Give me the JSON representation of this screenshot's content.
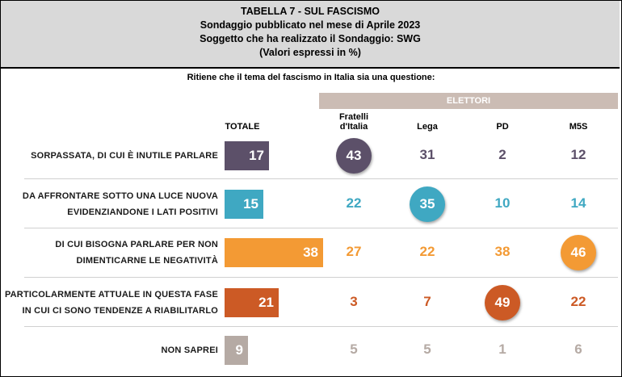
{
  "header": {
    "line1": "TABELLA 7 - SUL FASCISMO",
    "line2": "Sondaggio pubblicato nel mese di Aprile 2023",
    "line3": "Soggetto che ha realizzato il Sondaggio: SWG",
    "line4": "(Valori espressi in %)"
  },
  "question": "Ritiene che il tema del fascismo in Italia sia una questione:",
  "elettori_label": "ELETTORI",
  "columns": {
    "totale": "TOTALE",
    "fdi_line1": "Fratelli",
    "fdi_line2": "d'Italia",
    "lega": "Lega",
    "pd": "PD",
    "m5s": "M5S"
  },
  "chart_data": {
    "type": "table",
    "title": "TABELLA 7 - SUL FASCISMO",
    "xlabel": "",
    "ylabel": "",
    "categories": [
      "TOTALE",
      "Fratelli d'Italia",
      "Lega",
      "PD",
      "M5S"
    ],
    "rows": [
      {
        "label_line1": "SORPASSATA, DI CUI È INUTILE PARLARE",
        "label_line2": "",
        "color": "#5c5069",
        "values": [
          17,
          43,
          31,
          2,
          12
        ],
        "highlight": 1
      },
      {
        "label_line1": "DA AFFRONTARE SOTTO UNA LUCE NUOVA",
        "label_line2": "EVIDENZIANDONE I LATI POSITIVI",
        "color": "#3fa8c2",
        "values": [
          15,
          22,
          35,
          10,
          14
        ],
        "highlight": 2
      },
      {
        "label_line1": "DI CUI BISOGNA PARLARE PER NON",
        "label_line2": "DIMENTICARNE LE NEGATIVITÀ",
        "color": "#f39a34",
        "values": [
          38,
          27,
          22,
          38,
          46
        ],
        "highlight": 4
      },
      {
        "label_line1": "PARTICOLARMENTE ATTUALE IN QUESTA FASE",
        "label_line2": "IN CUI CI SONO TENDENZE A RIABILITARLO",
        "color": "#cc5a25",
        "values": [
          21,
          3,
          7,
          49,
          22
        ],
        "highlight": 3
      },
      {
        "label_line1": "NON SAPREI",
        "label_line2": "",
        "color": "#b5aaa4",
        "values": [
          9,
          5,
          5,
          1,
          6
        ],
        "highlight": -1
      }
    ]
  }
}
